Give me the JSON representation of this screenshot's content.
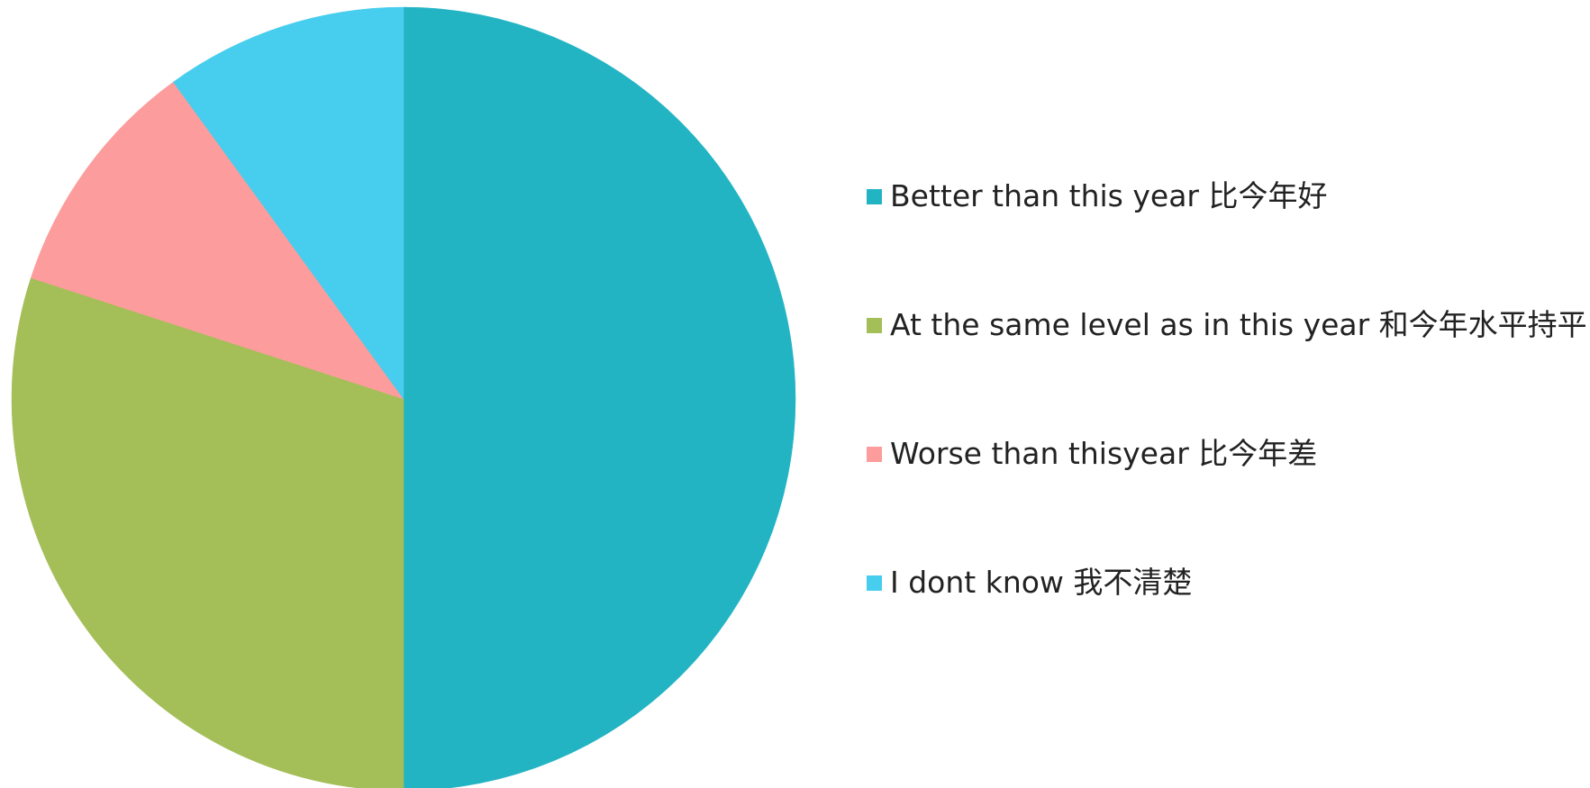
{
  "chart_data": {
    "type": "pie",
    "title": "",
    "start_angle_deg": 0,
    "direction": "clockwise",
    "legend_position": "right",
    "slices": [
      {
        "label": "Better than this year 比今年好",
        "value": 50,
        "color": "#23B4C4"
      },
      {
        "label": "At the same level as in this year 和今年水平持平",
        "value": 30,
        "color": "#A4BE58"
      },
      {
        "label": "Worse than thisyear 比今年差",
        "value": 10,
        "color": "#FD9C9C"
      },
      {
        "label": "I dont know 我不清楚",
        "value": 10,
        "color": "#47CDEE"
      }
    ]
  }
}
